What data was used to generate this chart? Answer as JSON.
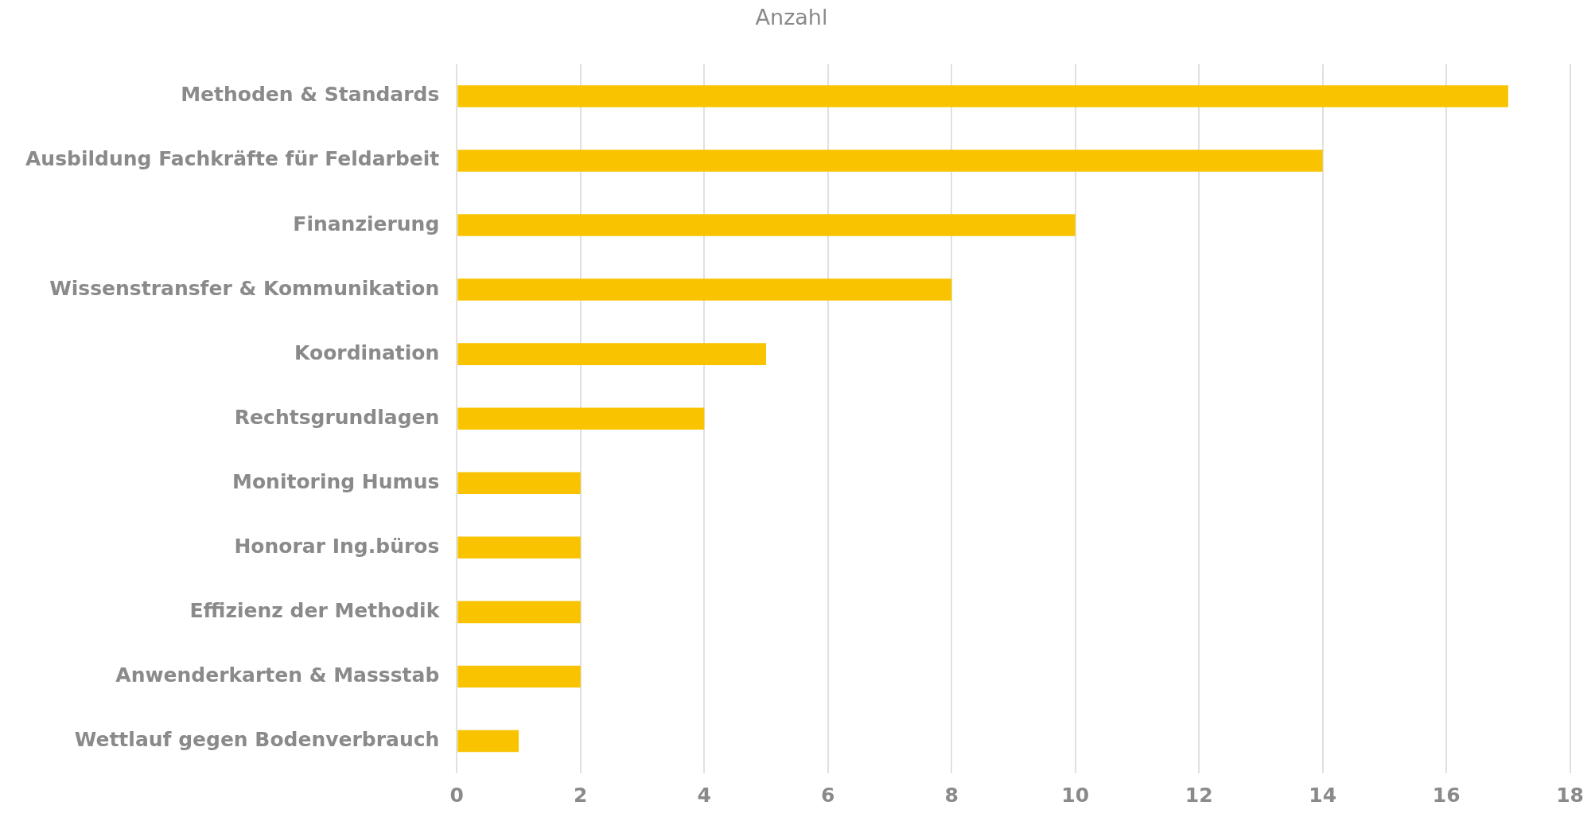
{
  "chart_data": {
    "type": "bar",
    "orientation": "horizontal",
    "title": "Anzahl",
    "categories": [
      "Methoden & Standards",
      "Ausbildung Fachkräfte für Feldarbeit",
      "Finanzierung",
      "Wissenstransfer & Kommunikation",
      "Koordination",
      "Rechtsgrundlagen",
      "Monitoring Humus",
      "Honorar Ing.büros",
      "Effizienz der Methodik",
      "Anwenderkarten & Massstab",
      "Wettlauf gegen Bodenverbrauch"
    ],
    "values": [
      17,
      14,
      10,
      8,
      5,
      4,
      2,
      2,
      2,
      2,
      1
    ],
    "color": "#f9c300",
    "xlim": [
      0,
      18
    ],
    "xticks": [
      0,
      2,
      4,
      6,
      8,
      10,
      12,
      14,
      16,
      18
    ],
    "grid": "x",
    "legend": false
  }
}
